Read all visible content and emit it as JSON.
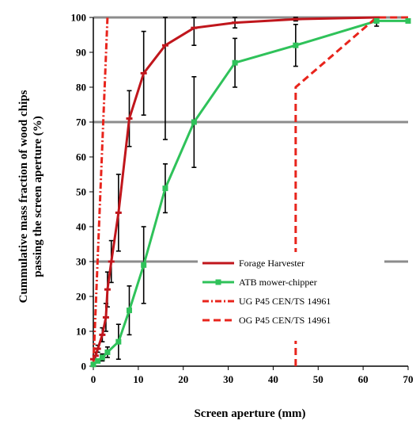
{
  "chart_data": {
    "type": "line",
    "title": "",
    "xlabel": "Screen aperture (mm)",
    "ylabel_lines": [
      "Cummulative mass  fraction of wood chips",
      "passing the screen aperture (%)"
    ],
    "xlim": [
      0,
      70
    ],
    "ylim": [
      0,
      100
    ],
    "x_ticks": [
      0,
      10,
      20,
      30,
      40,
      50,
      60,
      70
    ],
    "y_ticks": [
      0,
      10,
      20,
      30,
      40,
      50,
      60,
      70,
      80,
      90,
      100
    ],
    "gridlines_y": [
      30,
      70,
      100
    ],
    "legend_position": "lower-right",
    "series": [
      {
        "name": "Forage Harvester",
        "color": "#c0161c",
        "style": "solid",
        "marker": "dash",
        "points": [
          {
            "x": 0,
            "y": 2,
            "err": 0
          },
          {
            "x": 0.5,
            "y": 3,
            "err": 1
          },
          {
            "x": 1,
            "y": 5,
            "err": 1
          },
          {
            "x": 2,
            "y": 9,
            "err": 2
          },
          {
            "x": 2.8,
            "y": 14,
            "err": 4
          },
          {
            "x": 3.15,
            "y": 22,
            "err": 5
          },
          {
            "x": 4,
            "y": 30,
            "err": 6
          },
          {
            "x": 5.6,
            "y": 44,
            "err": 11
          },
          {
            "x": 8,
            "y": 71,
            "err": 8
          },
          {
            "x": 11.2,
            "y": 84,
            "err": 12
          },
          {
            "x": 16,
            "y": 92,
            "err": 27
          },
          {
            "x": 22.4,
            "y": 97,
            "err": 5
          },
          {
            "x": 31.5,
            "y": 98.5,
            "err": 1.5
          },
          {
            "x": 45,
            "y": 99.5,
            "err": 0.5
          },
          {
            "x": 63,
            "y": 100,
            "err": 0
          }
        ]
      },
      {
        "name": "ATB mower-chipper",
        "color": "#2fc25a",
        "style": "solid",
        "marker": "square",
        "points": [
          {
            "x": 0,
            "y": 0.5,
            "err": 0
          },
          {
            "x": 1,
            "y": 1.5,
            "err": 0.5
          },
          {
            "x": 2,
            "y": 2.5,
            "err": 1
          },
          {
            "x": 3.15,
            "y": 4,
            "err": 1.5
          },
          {
            "x": 5.6,
            "y": 7,
            "err": 5
          },
          {
            "x": 8,
            "y": 16,
            "err": 7
          },
          {
            "x": 11.2,
            "y": 29,
            "err": 11
          },
          {
            "x": 16,
            "y": 51,
            "err": 7
          },
          {
            "x": 22.4,
            "y": 70,
            "err": 13
          },
          {
            "x": 31.5,
            "y": 87,
            "err": 7
          },
          {
            "x": 45,
            "y": 92,
            "err": 6
          },
          {
            "x": 63,
            "y": 99,
            "err": 1.5
          },
          {
            "x": 70,
            "y": 99,
            "err": 0
          }
        ]
      },
      {
        "name": "UG P45 CEN/TS 14961",
        "color": "#e8241c",
        "style": "dashdot",
        "marker": "none",
        "points": [
          {
            "x": 0,
            "y": 0
          },
          {
            "x": 3.15,
            "y": 100
          }
        ]
      },
      {
        "name": "OG P45 CEN/TS 14961",
        "color": "#e8241c",
        "style": "dashed",
        "marker": "none",
        "points": [
          {
            "x": 45,
            "y": 0
          },
          {
            "x": 45,
            "y": 80
          },
          {
            "x": 63,
            "y": 100
          },
          {
            "x": 70,
            "y": 100
          }
        ]
      }
    ]
  }
}
